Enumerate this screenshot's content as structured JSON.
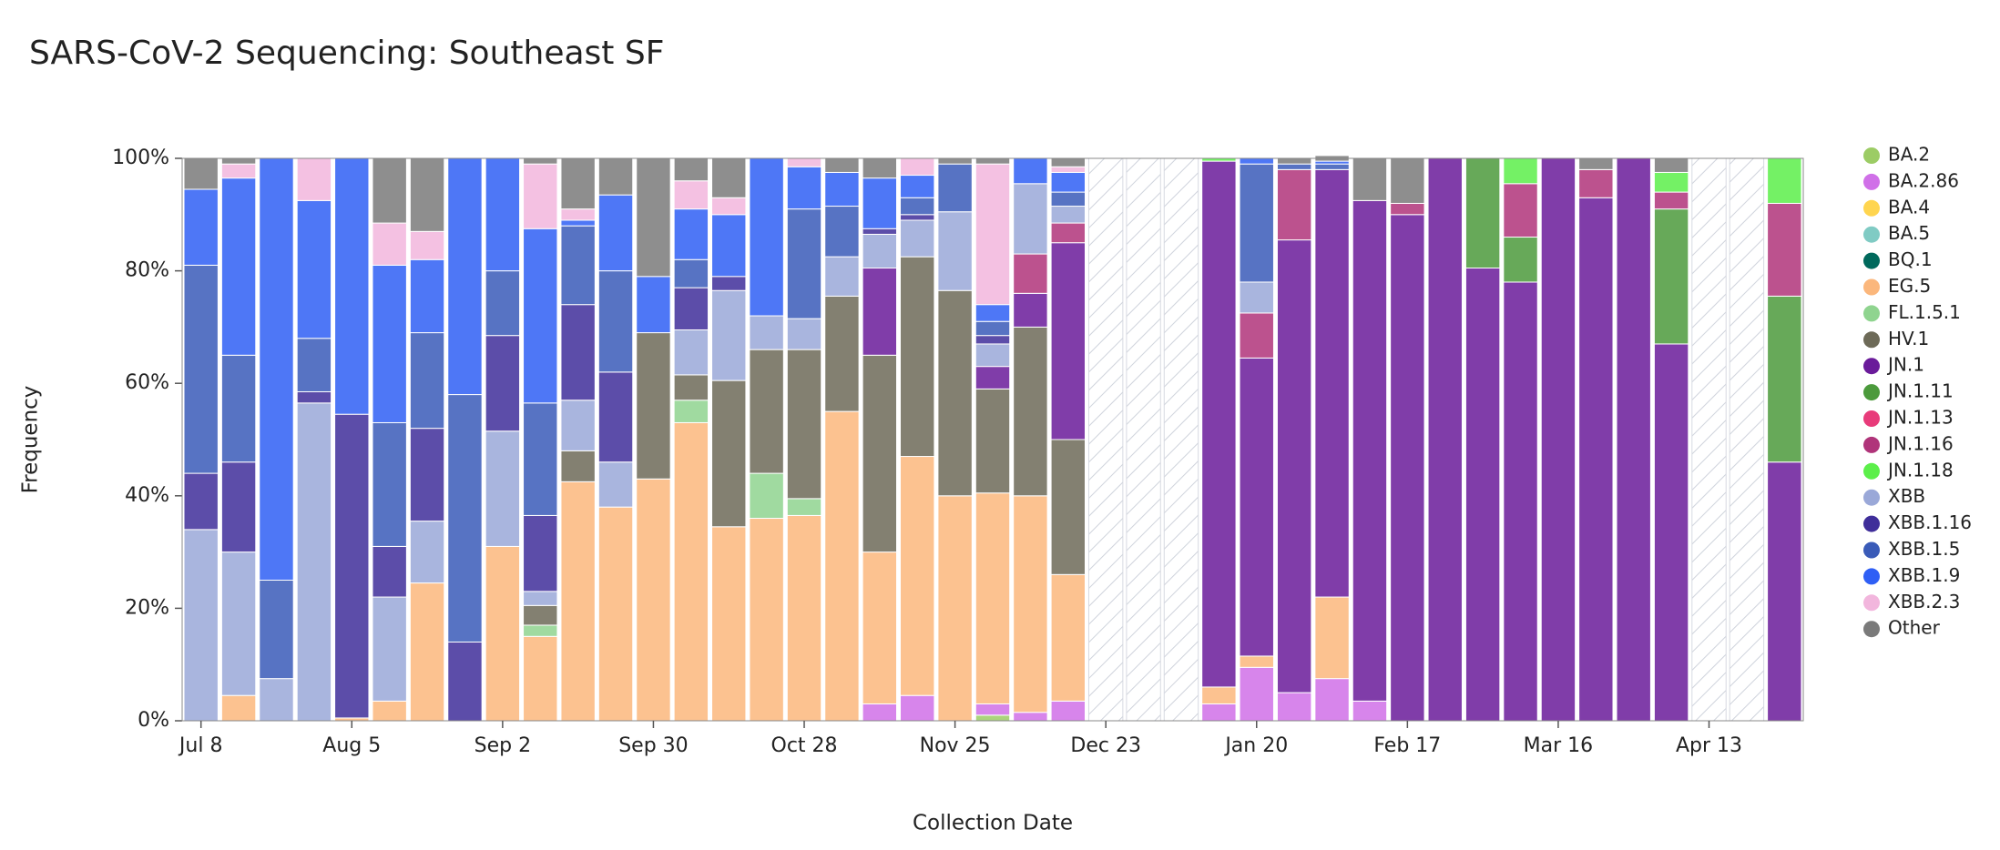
{
  "chart_data": {
    "type": "stacked_bar",
    "title": "SARS-CoV-2 Sequencing: Southeast SF",
    "x_label": "Collection Date",
    "y_label": "Frequency",
    "legend": "right",
    "ylim": [
      0,
      100
    ],
    "yticks": [
      {
        "value": 0,
        "label": "0%"
      },
      {
        "value": 20,
        "label": "20%"
      },
      {
        "value": 40,
        "label": "40%"
      },
      {
        "value": 60,
        "label": "60%"
      },
      {
        "value": 80,
        "label": "80%"
      },
      {
        "value": 100,
        "label": "100%"
      }
    ],
    "categories": [
      "Jul 8",
      null,
      null,
      null,
      "Aug 5",
      null,
      null,
      null,
      "Sep 2",
      null,
      null,
      null,
      "Sep 30",
      null,
      null,
      null,
      "Oct 28",
      null,
      null,
      null,
      "Nov 25",
      null,
      null,
      null,
      "Dec 23",
      null,
      null,
      null,
      "Jan 20",
      null,
      null,
      null,
      "Feb 17",
      null,
      null,
      null,
      "Mar 16",
      null,
      null,
      null,
      "Apr 13",
      null,
      null
    ],
    "series": [
      {
        "name": "BA.2",
        "color": "#9ccc65",
        "values": [
          0,
          0,
          0,
          0,
          0,
          0,
          0,
          0,
          0,
          0,
          0,
          0,
          0,
          0,
          0,
          0,
          0,
          0,
          0,
          0,
          0,
          1,
          0,
          0,
          null,
          null,
          null,
          0,
          0,
          0,
          0,
          0,
          0,
          0,
          0,
          0,
          0,
          0,
          0,
          0,
          null,
          null,
          0
        ]
      },
      {
        "name": "BA.2.86",
        "color": "#d070e8",
        "values": [
          0,
          0,
          0,
          0,
          0,
          0,
          0,
          0,
          0,
          0,
          0,
          0,
          0,
          0,
          0,
          0,
          0,
          0,
          3,
          4.5,
          0,
          2,
          1.5,
          3.5,
          null,
          null,
          null,
          3,
          9.5,
          5,
          7.5,
          3.5,
          0,
          0,
          0,
          0,
          0,
          0,
          0,
          0,
          null,
          null,
          0
        ]
      },
      {
        "name": "BA.4",
        "color": "#ffd54f",
        "values": [
          0,
          0,
          0,
          0,
          0,
          0,
          0,
          0,
          0,
          0,
          0,
          0,
          0,
          0,
          0,
          0,
          0,
          0,
          0,
          0,
          0,
          0,
          0,
          0,
          null,
          null,
          null,
          0,
          0,
          0,
          0,
          0,
          0,
          0,
          0,
          0,
          0,
          0,
          0,
          0,
          null,
          null,
          0
        ]
      },
      {
        "name": "BA.5",
        "color": "#80cbc4",
        "values": [
          0,
          0,
          0,
          0,
          0,
          0,
          0,
          0,
          0,
          0,
          0,
          0,
          0,
          0,
          0,
          0,
          0,
          0,
          0,
          0,
          0,
          0,
          0,
          0,
          null,
          null,
          null,
          0,
          0,
          0,
          0,
          0,
          0,
          0,
          0,
          0,
          0,
          0,
          0,
          0,
          null,
          null,
          0
        ]
      },
      {
        "name": "BQ.1",
        "color": "#00695c",
        "values": [
          0,
          0,
          0,
          0,
          0,
          0,
          0,
          0,
          0,
          0,
          0,
          0,
          0,
          0,
          0,
          0,
          0,
          0,
          0,
          0,
          0,
          0,
          0,
          0,
          null,
          null,
          null,
          0,
          0,
          0,
          0,
          0,
          0,
          0,
          0,
          0,
          0,
          0,
          0,
          0,
          null,
          null,
          0
        ]
      },
      {
        "name": "EG.5",
        "color": "#fbb77c",
        "values": [
          0,
          4.5,
          0,
          0,
          0.5,
          3.5,
          24.5,
          0,
          31,
          15,
          42.5,
          38,
          43,
          53,
          34.5,
          36,
          36.5,
          55,
          27,
          42.5,
          40,
          37.5,
          38.5,
          22.5,
          null,
          null,
          null,
          3,
          2,
          0,
          14.5,
          0,
          0,
          0,
          0,
          0,
          0,
          0,
          0,
          0,
          null,
          null,
          0
        ]
      },
      {
        "name": "FL.1.5.1",
        "color": "#8fd48f",
        "values": [
          0,
          0,
          0,
          0,
          0,
          0,
          0,
          0,
          0,
          2,
          0,
          0,
          0,
          4,
          0,
          8,
          3,
          0,
          0,
          0,
          0,
          0,
          0,
          0,
          null,
          null,
          null,
          0,
          0,
          0,
          0,
          0,
          0,
          0,
          0,
          0,
          0,
          0,
          0,
          0,
          null,
          null,
          0
        ]
      },
      {
        "name": "HV.1",
        "color": "#6d6a58",
        "values": [
          0,
          0,
          0,
          0,
          0,
          0,
          0,
          0,
          0,
          3.5,
          5.5,
          0,
          26,
          4.5,
          26,
          22,
          26.5,
          20.5,
          35,
          35.5,
          36.5,
          18.5,
          30,
          24,
          null,
          null,
          null,
          0,
          0,
          0,
          0,
          0,
          0,
          0,
          0,
          0,
          0,
          0,
          0,
          0,
          null,
          null,
          0
        ]
      },
      {
        "name": "JN.1",
        "color": "#6a1b9a",
        "values": [
          0,
          0,
          0,
          0,
          0,
          0,
          0,
          0,
          0,
          0,
          0,
          0,
          0,
          0,
          0,
          0,
          0,
          0,
          15.5,
          0,
          0,
          4,
          6,
          35,
          null,
          null,
          null,
          93.5,
          53,
          80.5,
          76,
          89,
          90,
          100,
          80.5,
          78,
          100,
          93,
          100,
          67,
          null,
          null,
          46
        ]
      },
      {
        "name": "JN.1.11",
        "color": "#4c9a3c",
        "values": [
          0,
          0,
          0,
          0,
          0,
          0,
          0,
          0,
          0,
          0,
          0,
          0,
          0,
          0,
          0,
          0,
          0,
          0,
          0,
          0,
          0,
          0,
          0,
          0,
          null,
          null,
          null,
          0,
          0,
          0,
          0,
          0,
          0,
          0,
          19.5,
          8,
          0,
          0,
          0,
          24,
          null,
          null,
          29.5
        ]
      },
      {
        "name": "JN.1.13",
        "color": "#e83b7a",
        "values": [
          0,
          0,
          0,
          0,
          0,
          0,
          0,
          0,
          0,
          0,
          0,
          0,
          0,
          0,
          0,
          0,
          0,
          0,
          0,
          0,
          0,
          0,
          0,
          0,
          null,
          null,
          null,
          0,
          0,
          0,
          0,
          0,
          0,
          0,
          0,
          0,
          0,
          0,
          0,
          0,
          null,
          null,
          0
        ]
      },
      {
        "name": "JN.1.16",
        "color": "#b0347a",
        "values": [
          0,
          0,
          0,
          0,
          0,
          0,
          0,
          0,
          0,
          0,
          0,
          0,
          0,
          0,
          0,
          0,
          0,
          0,
          0,
          0,
          0,
          0,
          7,
          3.5,
          null,
          null,
          null,
          0,
          8,
          12.5,
          0,
          0,
          2,
          0,
          0,
          9.5,
          0,
          5,
          0,
          3,
          null,
          null,
          16.5
        ]
      },
      {
        "name": "JN.1.18",
        "color": "#5cef4a",
        "values": [
          0,
          0,
          0,
          0,
          0,
          0,
          0,
          0,
          0,
          0,
          0,
          0,
          0,
          0,
          0,
          0,
          0,
          0,
          0,
          0,
          0,
          0,
          0,
          0,
          null,
          null,
          null,
          0.5,
          0,
          0,
          0,
          0,
          0,
          0,
          0,
          4.5,
          0,
          0,
          0,
          3.5,
          null,
          null,
          8
        ]
      },
      {
        "name": "XBB",
        "color": "#9aa8d8",
        "values": [
          34,
          25.5,
          7.5,
          56.5,
          0,
          18.5,
          11,
          0,
          20.5,
          2.5,
          9,
          8,
          0,
          8,
          16,
          6,
          5.5,
          7,
          6,
          6.5,
          14,
          4,
          12.5,
          3,
          null,
          null,
          null,
          0,
          5.5,
          0,
          0,
          0,
          0,
          0,
          0,
          0,
          0,
          0,
          0,
          0,
          null,
          null,
          0
        ]
      },
      {
        "name": "XBB.1.16",
        "color": "#3f2e9a",
        "values": [
          10,
          16,
          0,
          2,
          54,
          9,
          16.5,
          14,
          17,
          13.5,
          17,
          16,
          0,
          7.5,
          2.5,
          0,
          0,
          0,
          1,
          1,
          0,
          1.5,
          0,
          0,
          null,
          null,
          null,
          0,
          0,
          0,
          0,
          0,
          0,
          0,
          0,
          0,
          0,
          0,
          0,
          0,
          null,
          null,
          0
        ]
      },
      {
        "name": "XBB.1.5",
        "color": "#3a5bb8",
        "values": [
          37,
          19,
          17.5,
          9.5,
          0,
          22,
          17,
          44,
          11.5,
          20,
          14,
          18,
          0,
          5,
          0,
          0,
          19.5,
          9,
          0,
          3,
          8.5,
          2.5,
          0,
          2.5,
          null,
          null,
          null,
          0,
          21,
          1,
          1,
          0,
          0,
          0,
          0,
          0,
          0,
          0,
          0,
          0,
          null,
          null,
          0
        ]
      },
      {
        "name": "XBB.1.9",
        "color": "#2f5ff5",
        "values": [
          13.5,
          31.5,
          75,
          24.5,
          45.5,
          28,
          13,
          42,
          20,
          31,
          1,
          13.5,
          10,
          9,
          11,
          28,
          7.5,
          6,
          9,
          4,
          0,
          3,
          4.5,
          3.5,
          null,
          null,
          null,
          0,
          1,
          0,
          0.5,
          0,
          0,
          0,
          0,
          0,
          0,
          0,
          0,
          0,
          null,
          null,
          0
        ]
      },
      {
        "name": "XBB.2.3",
        "color": "#f2b6dd",
        "values": [
          0,
          2.5,
          0,
          7.5,
          0,
          7.5,
          5,
          0,
          0,
          11.5,
          2,
          0,
          0,
          5,
          3,
          0,
          1.5,
          0,
          0,
          3,
          0,
          25,
          0,
          1,
          null,
          null,
          null,
          0,
          0,
          0,
          0,
          0,
          0,
          0,
          0,
          0,
          0,
          0,
          0,
          0,
          null,
          null,
          0
        ]
      },
      {
        "name": "Other",
        "color": "#7a7a7a",
        "values": [
          5.5,
          1,
          0,
          0,
          0,
          11.5,
          13,
          0,
          0,
          1,
          9,
          6.5,
          21,
          4,
          7,
          0,
          0,
          2.5,
          3.5,
          0,
          1,
          1,
          0,
          1.5,
          null,
          null,
          null,
          0,
          0,
          1,
          1,
          7.5,
          8,
          0,
          0,
          0,
          0,
          2,
          0,
          2.5,
          null,
          null,
          0
        ]
      }
    ]
  }
}
